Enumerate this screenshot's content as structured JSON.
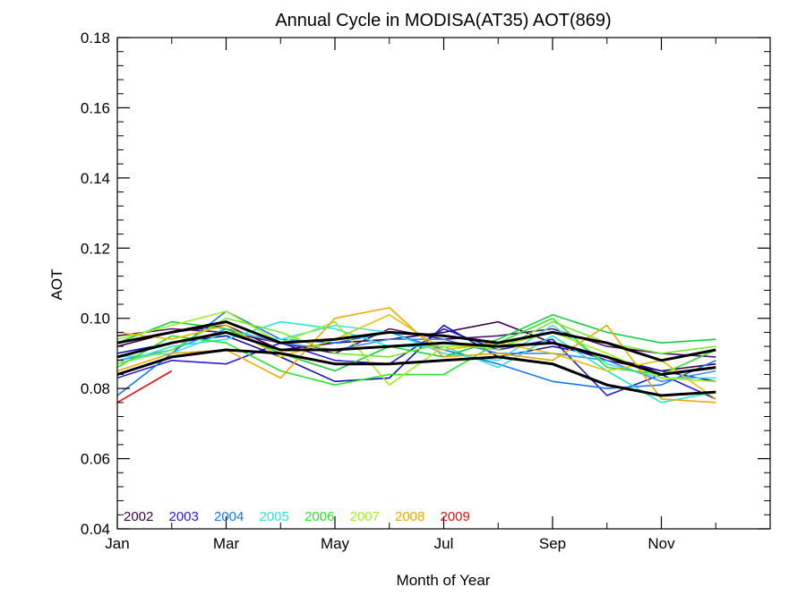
{
  "chart_data": {
    "type": "line",
    "title": "Annual Cycle in MODISA(AT35) AOT(869)",
    "xlabel": "Month of Year",
    "ylabel": "AOT",
    "xlim": [
      1,
      13
    ],
    "ylim": [
      0.04,
      0.18
    ],
    "x_ticks": [
      {
        "value": 1,
        "label": "Jan"
      },
      {
        "value": 3,
        "label": "Mar"
      },
      {
        "value": 5,
        "label": "May"
      },
      {
        "value": 7,
        "label": "Jul"
      },
      {
        "value": 9,
        "label": "Sep"
      },
      {
        "value": 11,
        "label": "Nov"
      }
    ],
    "y_ticks": [
      {
        "value": 0.04,
        "label": "0.04"
      },
      {
        "value": 0.06,
        "label": "0.06"
      },
      {
        "value": 0.08,
        "label": "0.08"
      },
      {
        "value": 0.1,
        "label": "0.10"
      },
      {
        "value": 0.12,
        "label": "0.12"
      },
      {
        "value": 0.14,
        "label": "0.14"
      },
      {
        "value": 0.16,
        "label": "0.16"
      },
      {
        "value": 0.18,
        "label": "0.18"
      }
    ],
    "grid": false,
    "legend_position": "bottom-left",
    "x": [
      1,
      2,
      3,
      4,
      5,
      6,
      7,
      8,
      9,
      10,
      11,
      12
    ],
    "series": [
      {
        "name": "2002",
        "color": "#3d0048",
        "values": [
          0.092,
          0.096,
          0.098,
          0.091,
          0.093,
          0.094,
          0.096,
          0.099,
          0.093,
          0.088,
          0.085,
          0.087
        ]
      },
      {
        "name": "2002",
        "color": "#5a1070",
        "values": [
          0.095,
          0.097,
          0.096,
          0.093,
          0.09,
          0.097,
          0.094,
          0.095,
          0.097,
          0.092,
          0.09,
          0.089
        ]
      },
      {
        "name": "2003",
        "color": "#2a1ad6",
        "values": [
          0.083,
          0.088,
          0.087,
          0.093,
          0.088,
          0.087,
          0.097,
          0.091,
          0.094,
          0.078,
          0.084,
          0.077
        ]
      },
      {
        "name": "2003",
        "color": "#1010b0",
        "values": [
          0.09,
          0.093,
          0.095,
          0.089,
          0.082,
          0.083,
          0.098,
          0.089,
          0.092,
          0.089,
          0.085,
          0.082
        ]
      },
      {
        "name": "2004",
        "color": "#1478f0",
        "values": [
          0.078,
          0.09,
          0.102,
          0.094,
          0.093,
          0.096,
          0.091,
          0.087,
          0.082,
          0.08,
          0.081,
          0.088
        ]
      },
      {
        "name": "2004",
        "color": "#3c8cf0",
        "values": [
          0.088,
          0.091,
          0.097,
          0.093,
          0.091,
          0.094,
          0.094,
          0.09,
          0.09,
          0.088,
          0.082,
          0.085
        ]
      },
      {
        "name": "2005",
        "color": "#24e8d0",
        "values": [
          0.087,
          0.092,
          0.094,
          0.099,
          0.097,
          0.092,
          0.092,
          0.086,
          0.095,
          0.085,
          0.076,
          0.079
        ]
      },
      {
        "name": "2005",
        "color": "#40e0e8",
        "values": [
          0.089,
          0.09,
          0.096,
          0.094,
          0.098,
          0.096,
          0.09,
          0.088,
          0.098,
          0.087,
          0.083,
          0.083
        ]
      },
      {
        "name": "2006",
        "color": "#28e428",
        "values": [
          0.086,
          0.095,
          0.093,
          0.085,
          0.081,
          0.084,
          0.084,
          0.093,
          0.1,
          0.086,
          0.084,
          0.091
        ]
      },
      {
        "name": "2006",
        "color": "#10d040",
        "values": [
          0.093,
          0.099,
          0.097,
          0.09,
          0.085,
          0.092,
          0.089,
          0.094,
          0.101,
          0.096,
          0.093,
          0.094
        ]
      },
      {
        "name": "2007",
        "color": "#a0f020",
        "values": [
          0.094,
          0.098,
          0.102,
          0.093,
          0.099,
          0.081,
          0.092,
          0.092,
          0.096,
          0.09,
          0.083,
          0.082
        ]
      },
      {
        "name": "2007",
        "color": "#78e830",
        "values": [
          0.087,
          0.091,
          0.1,
          0.096,
          0.09,
          0.089,
          0.093,
          0.091,
          0.099,
          0.093,
          0.09,
          0.092
        ]
      },
      {
        "name": "2008",
        "color": "#f0a800",
        "values": [
          0.085,
          0.09,
          0.091,
          0.083,
          0.1,
          0.103,
          0.089,
          0.09,
          0.088,
          0.098,
          0.077,
          0.076
        ]
      },
      {
        "name": "2008",
        "color": "#e6c000",
        "values": [
          0.096,
          0.094,
          0.098,
          0.089,
          0.094,
          0.101,
          0.091,
          0.093,
          0.09,
          0.085,
          0.088,
          0.077
        ]
      },
      {
        "name": "2009",
        "color": "#e01010",
        "values": [
          0.076,
          0.085,
          null,
          null,
          null,
          null,
          null,
          null,
          null,
          null,
          null,
          null
        ]
      },
      {
        "name": "",
        "color": "#000000",
        "width": 3,
        "values": [
          0.084,
          0.089,
          0.091,
          0.09,
          0.087,
          0.087,
          0.088,
          0.089,
          0.087,
          0.081,
          0.078,
          0.079
        ]
      },
      {
        "name": "",
        "color": "#000000",
        "width": 3,
        "values": [
          0.089,
          0.093,
          0.096,
          0.091,
          0.091,
          0.092,
          0.093,
          0.092,
          0.093,
          0.089,
          0.084,
          0.086
        ]
      },
      {
        "name": "",
        "color": "#000000",
        "width": 3,
        "values": [
          0.093,
          0.096,
          0.099,
          0.093,
          0.094,
          0.096,
          0.095,
          0.093,
          0.096,
          0.093,
          0.088,
          0.091
        ]
      }
    ],
    "legend": [
      {
        "label": "2002",
        "color": "#3d0048"
      },
      {
        "label": "2003",
        "color": "#2a1ad6"
      },
      {
        "label": "2004",
        "color": "#1478f0"
      },
      {
        "label": "2005",
        "color": "#24e8d0"
      },
      {
        "label": "2006",
        "color": "#28e428"
      },
      {
        "label": "2007",
        "color": "#a0f020"
      },
      {
        "label": "2008",
        "color": "#f0a800"
      },
      {
        "label": "2009",
        "color": "#e01010"
      }
    ]
  }
}
